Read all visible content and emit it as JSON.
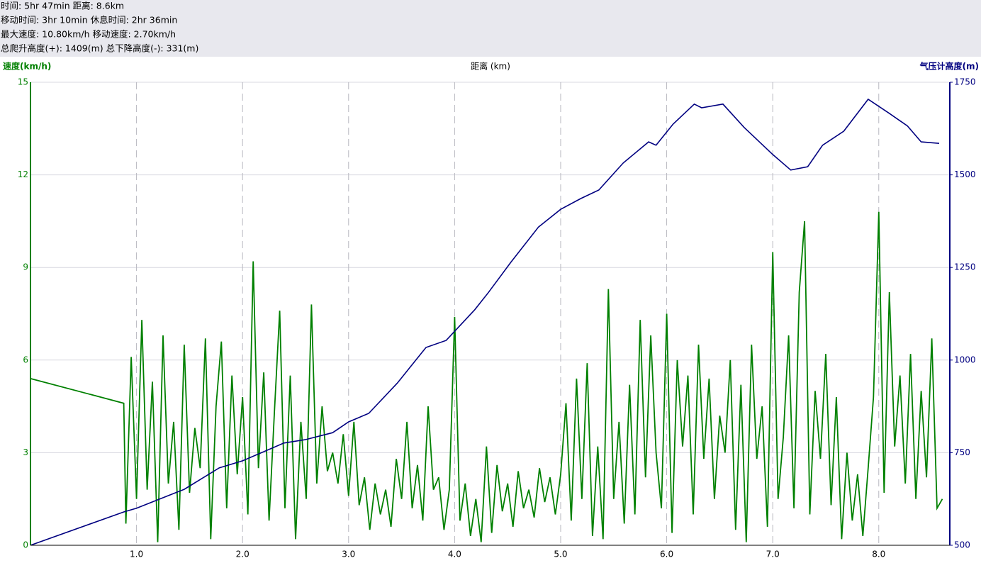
{
  "chart_data": {
    "type": "line",
    "summary": [
      "时间: 5hr 47min  距离: 8.6km",
      "移动时间: 3hr 10min  休息时间: 2hr 36min",
      "最大速度: 10.80km/h  移动速度: 2.70km/h",
      "总爬升高度(+): 1409(m)  总下降高度(-): 331(m)"
    ],
    "ylabel": "速度(km/h)",
    "xlabel": "距离 (km)",
    "y2label": "气压计高度(m)",
    "xlim": [
      0,
      8.67
    ],
    "xticks": [
      {
        "value": 1,
        "label": "1.0"
      },
      {
        "value": 2,
        "label": "2.0"
      },
      {
        "value": 3,
        "label": "3.0"
      },
      {
        "value": 4,
        "label": "4.0"
      },
      {
        "value": 5,
        "label": "5.0"
      },
      {
        "value": 6,
        "label": "6.0"
      },
      {
        "value": 7,
        "label": "7.0"
      },
      {
        "value": 8,
        "label": "8.0"
      }
    ],
    "ylim": [
      0,
      15
    ],
    "yticks": [
      0,
      3,
      6,
      9,
      12,
      15
    ],
    "y2lim": [
      500,
      1750
    ],
    "y2ticks": [
      500,
      750,
      1000,
      1250,
      1500,
      1750
    ],
    "grid": true,
    "series": [
      {
        "color": "#008000",
        "x": [
          0,
          0.88,
          0.9,
          0.95,
          1.0,
          1.05,
          1.1,
          1.15,
          1.2,
          1.25,
          1.3,
          1.35,
          1.4,
          1.45,
          1.5,
          1.55,
          1.6,
          1.65,
          1.7,
          1.75,
          1.8,
          1.85,
          1.9,
          1.95,
          2.0,
          2.05,
          2.1,
          2.15,
          2.2,
          2.25,
          2.3,
          2.35,
          2.4,
          2.45,
          2.5,
          2.55,
          2.6,
          2.65,
          2.7,
          2.75,
          2.8,
          2.85,
          2.9,
          2.95,
          3.0,
          3.05,
          3.1,
          3.15,
          3.2,
          3.25,
          3.3,
          3.35,
          3.4,
          3.45,
          3.5,
          3.55,
          3.6,
          3.65,
          3.7,
          3.75,
          3.8,
          3.85,
          3.9,
          3.95,
          4.0,
          4.05,
          4.1,
          4.15,
          4.2,
          4.25,
          4.3,
          4.35,
          4.4,
          4.45,
          4.5,
          4.55,
          4.6,
          4.65,
          4.7,
          4.75,
          4.8,
          4.85,
          4.9,
          4.95,
          5.0,
          5.05,
          5.1,
          5.15,
          5.2,
          5.25,
          5.3,
          5.35,
          5.4,
          5.45,
          5.5,
          5.55,
          5.6,
          5.65,
          5.7,
          5.75,
          5.8,
          5.85,
          5.9,
          5.95,
          6.0,
          6.05,
          6.1,
          6.15,
          6.2,
          6.25,
          6.3,
          6.35,
          6.4,
          6.45,
          6.5,
          6.55,
          6.6,
          6.65,
          6.7,
          6.75,
          6.8,
          6.85,
          6.9,
          6.95,
          7.0,
          7.05,
          7.1,
          7.15,
          7.2,
          7.25,
          7.3,
          7.35,
          7.4,
          7.45,
          7.5,
          7.55,
          7.6,
          7.65,
          7.7,
          7.75,
          7.8,
          7.85,
          7.9,
          7.95,
          8.0,
          8.05,
          8.1,
          8.15,
          8.2,
          8.25,
          8.3,
          8.35,
          8.4,
          8.45,
          8.5,
          8.55,
          8.6
        ],
        "values": [
          5.4,
          4.6,
          0.7,
          6.1,
          1.5,
          7.3,
          1.8,
          5.3,
          0.1,
          6.8,
          2.0,
          4.0,
          0.5,
          6.5,
          1.7,
          3.8,
          2.5,
          6.7,
          0.2,
          4.5,
          6.6,
          1.2,
          5.5,
          2.3,
          4.8,
          1.0,
          9.2,
          2.5,
          5.6,
          0.8,
          4.3,
          7.6,
          1.2,
          5.5,
          0.2,
          4.0,
          1.5,
          7.8,
          2.0,
          4.5,
          2.4,
          3.0,
          2.0,
          3.6,
          1.6,
          4.0,
          1.3,
          2.2,
          0.5,
          2.0,
          1.0,
          1.8,
          0.6,
          2.8,
          1.5,
          4.0,
          1.2,
          2.6,
          0.8,
          4.5,
          1.8,
          2.2,
          0.5,
          1.8,
          7.4,
          0.8,
          2.0,
          0.3,
          1.5,
          0.1,
          3.2,
          0.4,
          2.6,
          1.1,
          2.0,
          0.6,
          2.4,
          1.2,
          1.8,
          0.9,
          2.5,
          1.4,
          2.2,
          1.0,
          2.3,
          4.6,
          0.8,
          5.4,
          1.5,
          5.9,
          0.3,
          3.2,
          0.2,
          8.3,
          1.5,
          4.0,
          0.7,
          5.2,
          1.0,
          7.3,
          2.2,
          6.8,
          3.0,
          1.2,
          7.5,
          0.4,
          6.0,
          3.2,
          5.5,
          1.0,
          6.5,
          2.8,
          5.4,
          1.5,
          4.2,
          3.0,
          6.0,
          0.5,
          5.2,
          0.1,
          6.5,
          2.8,
          4.5,
          0.6,
          9.5,
          1.5,
          3.5,
          6.8,
          1.2,
          8.2,
          10.5,
          1.0,
          5.0,
          2.8,
          6.2,
          1.3,
          4.8,
          0.2,
          3.0,
          0.8,
          2.3,
          0.3,
          2.5,
          4.8,
          10.8,
          1.7,
          8.2,
          3.2,
          5.5,
          2.0,
          6.2,
          1.5,
          5.0,
          2.2,
          6.7,
          1.2,
          1.5
        ]
      },
      {
        "color": "#000080",
        "axis": "y2",
        "x": [
          0,
          0.88,
          1.0,
          1.45,
          1.78,
          2.0,
          2.39,
          2.59,
          2.85,
          3.0,
          3.19,
          3.46,
          3.73,
          3.92,
          4.19,
          4.32,
          4.53,
          4.79,
          5.0,
          5.19,
          5.36,
          5.59,
          5.83,
          5.9,
          6.06,
          6.26,
          6.33,
          6.53,
          6.73,
          7.0,
          7.17,
          7.33,
          7.47,
          7.67,
          7.9,
          8.1,
          8.27,
          8.4,
          8.57
        ],
        "values": [
          500,
          590,
          600,
          651,
          709,
          728,
          776,
          785,
          804,
          833,
          856,
          938,
          1034,
          1053,
          1136,
          1183,
          1264,
          1359,
          1407,
          1436,
          1459,
          1532,
          1589,
          1580,
          1637,
          1691,
          1681,
          1691,
          1628,
          1555,
          1513,
          1522,
          1580,
          1618,
          1704,
          1666,
          1632,
          1589,
          1585
        ]
      }
    ]
  }
}
